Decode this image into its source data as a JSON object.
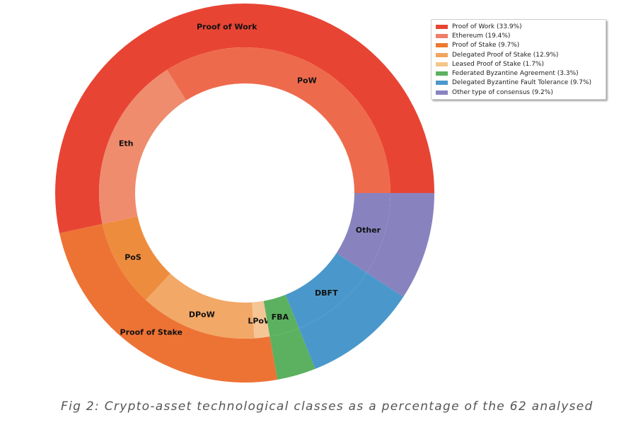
{
  "chart_data": {
    "type": "donut",
    "outer_ring": [
      {
        "label": "Proof of Work",
        "value": 53.3,
        "color": "#e84434"
      },
      {
        "label": "Proof of Stake",
        "value": 24.3,
        "color": "#ed7335"
      },
      {
        "label": "",
        "value": 3.3,
        "color": "#5bb15f"
      },
      {
        "label": "",
        "value": 9.7,
        "color": "#4a98cb"
      },
      {
        "label": "",
        "value": 9.2,
        "color": "#8883bf"
      }
    ],
    "inner_ring": [
      {
        "label": "PoW",
        "value": 33.9,
        "color": "#ee6a4c"
      },
      {
        "label": "Eth",
        "value": 19.4,
        "color": "#ef8c6e"
      },
      {
        "label": "PoS",
        "value": 9.7,
        "color": "#ee8c3e"
      },
      {
        "label": "DPoW",
        "value": 12.9,
        "color": "#f2a866"
      },
      {
        "label": "LPoW",
        "value": 1.7,
        "color": "#f5c595"
      },
      {
        "label": "FBA",
        "value": 3.3,
        "color": "#5bb15f"
      },
      {
        "label": "DBFT",
        "value": 9.7,
        "color": "#4a98cb"
      },
      {
        "label": "Other",
        "value": 9.2,
        "color": "#8883bf"
      }
    ],
    "legend": [
      {
        "label": "Proof of Work (33.9%)",
        "color": "#e84434"
      },
      {
        "label": "Ethereum (19.4%)",
        "color": "#ee7f66"
      },
      {
        "label": "Proof of Stake (9.7%)",
        "color": "#ed7a2e"
      },
      {
        "label": "Delegated Proof of Stake (12.9%)",
        "color": "#f2a45e"
      },
      {
        "label": "Leased Proof of Stake (1.7%)",
        "color": "#f5c68a"
      },
      {
        "label": "Federated Byzantine Agreement (3.3%)",
        "color": "#5bb15f"
      },
      {
        "label": "Delegated Byzantine Fault Tolerance (9.7%)",
        "color": "#4a98cb"
      },
      {
        "label": "Other type of consensus (9.2%)",
        "color": "#8883bf"
      }
    ],
    "legend_position": "top-right"
  },
  "caption": "Fig 2: Crypto-asset technological classes as a percentage of the 62 analysed"
}
